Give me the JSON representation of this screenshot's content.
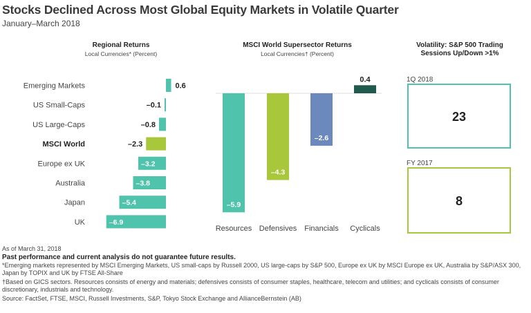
{
  "title": "Stocks Declined Across Most Global Equity Markets in Volatile Quarter",
  "subtitle": "January–March 2018",
  "colors": {
    "teal": "#4fc3ac",
    "lime": "#a9c73a",
    "blue": "#6b89bd",
    "dark": "#1f5a4d",
    "frame": "#4fc3ac",
    "frame2": "#a9c73a"
  },
  "chart_data": [
    {
      "type": "bar",
      "orientation": "horizontal",
      "title": "Regional Returns",
      "subtitle": "Local Currencies* (Percent)",
      "categories": [
        "Emerging Markets",
        "US Small-Caps",
        "US Large-Caps",
        "MSCI World",
        "Europe ex UK",
        "Australia",
        "Japan",
        "UK"
      ],
      "values": [
        0.6,
        -0.1,
        -0.8,
        -2.3,
        -3.2,
        -3.8,
        -5.4,
        -6.9
      ],
      "labels": [
        "0.6",
        "–0.1",
        "–0.8",
        "–2.3",
        "–3.2",
        "–3.8",
        "–5.4",
        "–6.9"
      ],
      "highlight": "MSCI World"
    },
    {
      "type": "bar",
      "title": "MSCI World Supersector Returns",
      "subtitle": "Local Currencies† (Percent)",
      "categories": [
        "Resources",
        "Defensives",
        "Financials",
        "Cyclicals"
      ],
      "values": [
        -5.9,
        -4.3,
        -2.6,
        0.4
      ],
      "labels": [
        "–5.9",
        "–4.3",
        "–2.6",
        "0.4"
      ]
    },
    {
      "type": "table",
      "title": "Volatility: S&P 500 Trading Sessions Up/Down >1%",
      "rows": [
        {
          "period": "1Q 2018",
          "value": 23
        },
        {
          "period": "FY 2017",
          "value": 8
        }
      ]
    }
  ],
  "footnotes": {
    "asof": "As of March 31, 2018",
    "disclaimer": "Past performance and current analysis do not guarantee future results.",
    "note1": "*Emerging markets represented by MSCI Emerging Markets, US small-caps by Russell 2000, US large-caps by S&P 500, Europe ex UK by MSCI Europe ex UK, Australia by S&P/ASX 300, Japan by TOPIX and UK by FTSE All-Share",
    "note2": "†Based on GICS sectors. Resources consists of energy and materials; defensives consists of consumer staples, healthcare, telecom and utilities; and cyclicals consists of consumer discretionary, industrials and technology.",
    "source": "Source: FactSet, FTSE, MSCI, Russell Investments, S&P, Tokyo Stock Exchange and AllianceBernstein (AB)"
  }
}
